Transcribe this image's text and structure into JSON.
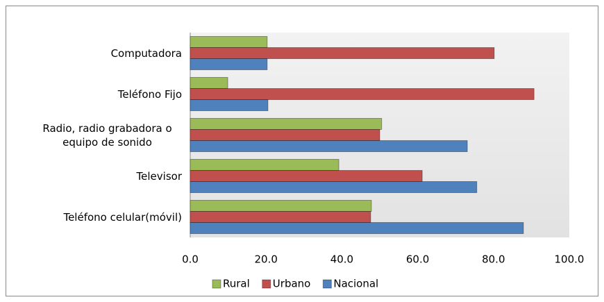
{
  "chart_data": {
    "type": "bar",
    "orientation": "horizontal",
    "categories": [
      "Computadora",
      "Teléfono Fijo",
      "Radio, radio grabadora o equipo de sonido",
      "Televisor",
      "Teléfono celular(móvil)"
    ],
    "series": [
      {
        "name": "Rural",
        "color": "#9bbb59",
        "values": [
          20.3,
          9.9,
          50.5,
          39.2,
          47.8
        ]
      },
      {
        "name": "Urbano",
        "color": "#c0504d",
        "values": [
          80.2,
          90.7,
          50.0,
          61.2,
          47.6
        ]
      },
      {
        "name": "Nacional",
        "color": "#4f81bd",
        "values": [
          20.3,
          20.5,
          73.1,
          75.6,
          87.9
        ]
      }
    ],
    "xlim": [
      0,
      100
    ],
    "xticks": [
      {
        "value": 0,
        "label": "0.0"
      },
      {
        "value": 20,
        "label": "20.0"
      },
      {
        "value": 40,
        "label": "40.0"
      },
      {
        "value": 60,
        "label": "60.0"
      },
      {
        "value": 80,
        "label": "80.0"
      },
      {
        "value": 100,
        "label": "100.0"
      }
    ],
    "legend": "bottom"
  }
}
